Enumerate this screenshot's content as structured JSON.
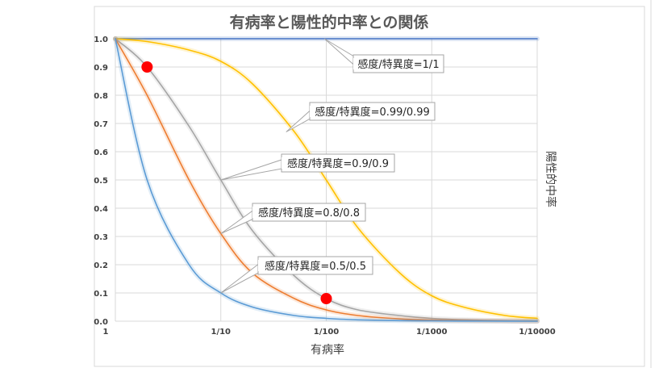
{
  "chart_data": {
    "type": "line",
    "title": "有病率と陽性的中率との関係",
    "xlabel": "有病率",
    "ylabel": "陽性的中率",
    "x_scale": "log",
    "x_tick_labels": [
      "1",
      "1/10",
      "1/100",
      "1/1000",
      "1/10000"
    ],
    "x_tick_values": [
      1,
      0.1,
      0.01,
      0.001,
      0.0001
    ],
    "y_tick_labels": [
      "0.0",
      "0.1",
      "0.2",
      "0.3",
      "0.4",
      "0.5",
      "0.6",
      "0.7",
      "0.8",
      "0.9",
      "1.0"
    ],
    "ylim": [
      0,
      1
    ],
    "grid": true,
    "x": [
      1,
      0.5,
      0.2,
      0.1,
      0.05,
      0.02,
      0.01,
      0.005,
      0.002,
      0.001,
      0.0005,
      0.0002,
      0.0001
    ],
    "series": [
      {
        "name": "感度/特異度=1/1",
        "color": "#4472c4",
        "values": [
          1,
          1,
          1,
          1,
          1,
          1,
          1,
          1,
          1,
          1,
          1,
          1,
          1
        ]
      },
      {
        "name": "感度/特異度=0.99/0.99",
        "color": "#ffc000",
        "values": [
          1,
          0.99,
          0.96,
          0.92,
          0.84,
          0.67,
          0.5,
          0.33,
          0.17,
          0.09,
          0.05,
          0.02,
          0.01
        ]
      },
      {
        "name": "感度/特異度=0.9/0.9",
        "color": "#a5a5a5",
        "values": [
          1,
          0.9,
          0.69,
          0.5,
          0.32,
          0.16,
          0.08,
          0.04,
          0.02,
          0.01,
          0.005,
          0.002,
          0.001
        ]
      },
      {
        "name": "感度/特異度=0.8/0.8",
        "color": "#ed7d31",
        "values": [
          1,
          0.8,
          0.5,
          0.31,
          0.17,
          0.08,
          0.04,
          0.02,
          0.008,
          0.004,
          0.002,
          0.001,
          0
        ]
      },
      {
        "name": "感度/特異度=0.5/0.5",
        "color": "#5b9bd5",
        "values": [
          1,
          0.5,
          0.2,
          0.1,
          0.05,
          0.02,
          0.01,
          0.005,
          0.002,
          0.001,
          0.0005,
          0.0002,
          0.0001
        ]
      }
    ],
    "callouts": [
      {
        "text": "感度/特異度=1/1",
        "series_index": 0,
        "anchor_x": 0.0104
      },
      {
        "text": "感度/特異度=0.99/0.99",
        "series_index": 1,
        "anchor_x": 0.024
      },
      {
        "text": "感度/特異度=0.9/0.9",
        "series_index": 2,
        "anchor_x": 0.1
      },
      {
        "text": "感度/特異度=0.8/0.8",
        "series_index": 3,
        "anchor_x": 0.1
      },
      {
        "text": "感度/特異度=0.5/0.5",
        "series_index": 4,
        "anchor_x": 0.1
      }
    ],
    "highlight_points": [
      {
        "x": 0.5,
        "y": 0.9,
        "color": "#ff0000"
      },
      {
        "x": 0.01,
        "y": 0.08,
        "color": "#ff0000"
      }
    ]
  }
}
